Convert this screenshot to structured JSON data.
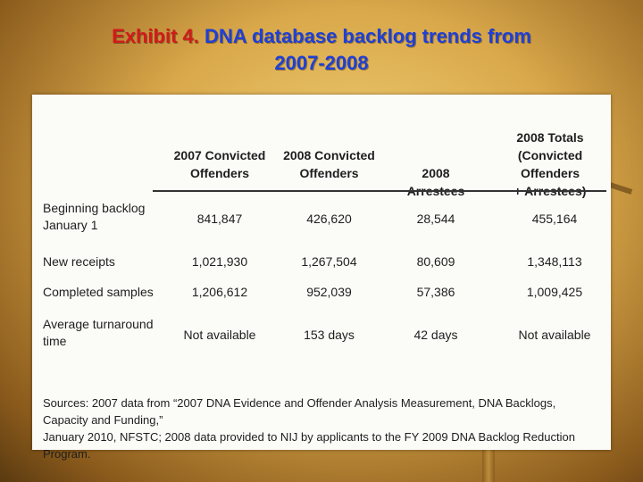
{
  "title": {
    "exhibit": "Exhibit 4.",
    "text_line1": "DNA database backlog trends from",
    "text_line2": "2007-2008"
  },
  "table": {
    "columns": [
      {
        "line1": "2007 Convicted",
        "line2": "Offenders"
      },
      {
        "line1": "2008 Convicted",
        "line2": "Offenders"
      },
      {
        "line1": "",
        "line2": "2008 Arrestees"
      },
      {
        "line1": "2008 Totals",
        "line2": "(Convicted Offenders",
        "line3": "+ Arrestees)"
      }
    ],
    "rows": [
      {
        "label1": "Beginning backlog",
        "label2": "January 1",
        "values": [
          "841,847",
          "426,620",
          "28,544",
          "455,164"
        ]
      },
      {
        "label1": "New receipts",
        "label2": "",
        "values": [
          "1,021,930",
          "1,267,504",
          "80,609",
          "1,348,113"
        ]
      },
      {
        "label1": "Completed samples",
        "label2": "",
        "values": [
          "1,206,612",
          "952,039",
          "57,386",
          "1,009,425"
        ]
      },
      {
        "label1": "Average turnaround",
        "label2": "time",
        "values": [
          "Not available",
          "153 days",
          "42 days",
          "Not available"
        ]
      }
    ]
  },
  "sources": {
    "line1": "Sources: 2007 data from “2007 DNA Evidence and Offender Analysis Measurement, DNA Backlogs, Capacity and Funding,”",
    "line2": "January 2010, NFSTC; 2008 data provided to NIJ by applicants to the FY 2009 DNA Backlog Reduction Program."
  }
}
